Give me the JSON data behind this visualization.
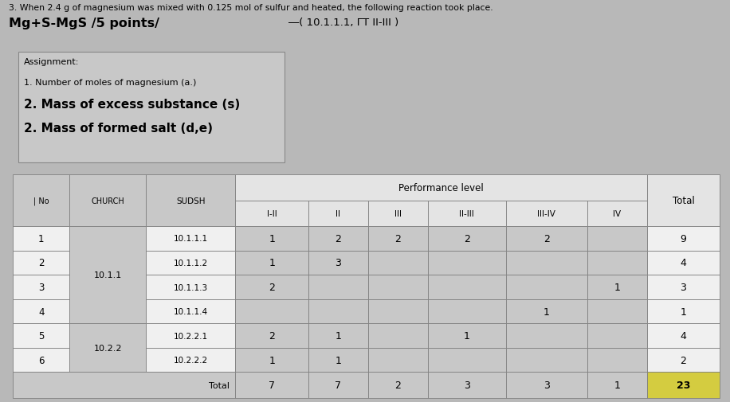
{
  "title_line1": "3. When 2.4 g of magnesium was mixed with 0.125 mol of sulfur and heated, the following reaction took place.",
  "title_line2": "Mg+S-MgS /5 points/",
  "title_line2_right": "―( 10.1.1.1, ΓT II-III )",
  "assignment_header": "Assignment:",
  "assignment_lines": [
    "1. Number of moles of magnesium (a.)",
    "2. Mass of excess substance (s)",
    "2. Mass of formed salt (d,e)"
  ],
  "bg_color": "#b8b8b8",
  "cell_gray": "#c8c8c8",
  "cell_white": "#e8e8e8",
  "cell_white2": "#f0f0f0",
  "header_white": "#e4e4e4",
  "total_yellow": "#d4cc40",
  "rows": [
    {
      "no": "1",
      "sudsh": "10.1.1.1",
      "I-II": "1",
      "II": "2",
      "III": "2",
      "II-III": "2",
      "III-IV": "2",
      "IV": "",
      "total": "9"
    },
    {
      "no": "2",
      "sudsh": "10.1.1.2",
      "I-II": "1",
      "II": "3",
      "III": "",
      "II-III": "",
      "III-IV": "",
      "IV": "",
      "total": "4"
    },
    {
      "no": "3",
      "sudsh": "10.1.1.3",
      "I-II": "2",
      "II": "",
      "III": "",
      "II-III": "",
      "III-IV": "",
      "IV": "1",
      "total": "3"
    },
    {
      "no": "4",
      "sudsh": "10.1.1.4",
      "I-II": "",
      "II": "",
      "III": "",
      "II-III": "",
      "III-IV": "1",
      "IV": "",
      "total": "1"
    },
    {
      "no": "5",
      "sudsh": "10.2.2.1",
      "I-II": "2",
      "II": "1",
      "III": "",
      "II-III": "1",
      "III-IV": "",
      "IV": "",
      "total": "4"
    },
    {
      "no": "6",
      "sudsh": "10.2.2.2",
      "I-II": "1",
      "II": "1",
      "III": "",
      "II-III": "",
      "III-IV": "",
      "IV": "",
      "total": "2"
    }
  ],
  "church_spans": [
    {
      "start": 0,
      "end": 3,
      "value": "10.1.1"
    },
    {
      "start": 4,
      "end": 5,
      "value": "10.2.2"
    }
  ],
  "totals": {
    "I-II": "7",
    "II": "7",
    "III": "2",
    "II-III": "3",
    "III-IV": "3",
    "IV": "1",
    "total": "23"
  }
}
